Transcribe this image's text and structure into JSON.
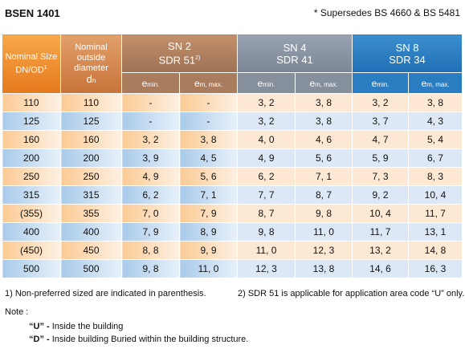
{
  "header": {
    "standard": "BSEN 1401",
    "supersedes": "* Supersedes BS 4660 & BS 5481"
  },
  "table": {
    "col_nominal_size": "Nominal Size DN/OD",
    "col_nominal_size_sup": "1",
    "col_outside_line1": "Nominal",
    "col_outside_line2": "outside",
    "col_outside_line3": "diameter",
    "col_outside_sym": "d",
    "col_outside_sub": "n",
    "groups": [
      {
        "sn": "SN 2",
        "sdr": "SDR 51",
        "sdr_sup": "2)"
      },
      {
        "sn": "SN 4",
        "sdr": "SDR 41",
        "sdr_sup": ""
      },
      {
        "sn": "SN 8",
        "sdr": "SDR 34",
        "sdr_sup": ""
      }
    ],
    "sub_emin_sym": "e",
    "sub_emin_sub": "min.",
    "sub_emax_sym": "e",
    "sub_emax_sub": "m, max.",
    "rows": [
      {
        "size": "110",
        "od": "110",
        "sn2_min": "-",
        "sn2_max": "-",
        "sn4_min": "3, 2",
        "sn4_max": "3, 8",
        "sn8_min": "3, 2",
        "sn8_max": "3, 8"
      },
      {
        "size": "125",
        "od": "125",
        "sn2_min": "-",
        "sn2_max": "-",
        "sn4_min": "3, 2",
        "sn4_max": "3, 8",
        "sn8_min": "3, 7",
        "sn8_max": "4, 3"
      },
      {
        "size": "160",
        "od": "160",
        "sn2_min": "3, 2",
        "sn2_max": "3, 8",
        "sn4_min": "4, 0",
        "sn4_max": "4, 6",
        "sn8_min": "4, 7",
        "sn8_max": "5, 4"
      },
      {
        "size": "200",
        "od": "200",
        "sn2_min": "3, 9",
        "sn2_max": "4, 5",
        "sn4_min": "4, 9",
        "sn4_max": "5, 6",
        "sn8_min": "5, 9",
        "sn8_max": "6, 7"
      },
      {
        "size": "250",
        "od": "250",
        "sn2_min": "4, 9",
        "sn2_max": "5, 6",
        "sn4_min": "6, 2",
        "sn4_max": "7, 1",
        "sn8_min": "7, 3",
        "sn8_max": "8, 3"
      },
      {
        "size": "315",
        "od": "315",
        "sn2_min": "6, 2",
        "sn2_max": "7, 1",
        "sn4_min": "7, 7",
        "sn4_max": "8, 7",
        "sn8_min": "9, 2",
        "sn8_max": "10, 4"
      },
      {
        "size": "(355)",
        "od": "355",
        "sn2_min": "7, 0",
        "sn2_max": "7, 9",
        "sn4_min": "8, 7",
        "sn4_max": "9, 8",
        "sn8_min": "10, 4",
        "sn8_max": "11, 7"
      },
      {
        "size": "400",
        "od": "400",
        "sn2_min": "7, 9",
        "sn2_max": "8, 9",
        "sn4_min": "9, 8",
        "sn4_max": "11, 0",
        "sn8_min": "11, 7",
        "sn8_max": "13, 1"
      },
      {
        "size": "(450)",
        "od": "450",
        "sn2_min": "8, 8",
        "sn2_max": "9, 9",
        "sn4_min": "11, 0",
        "sn4_max": "12, 3",
        "sn8_min": "13, 2",
        "sn8_max": "14, 8"
      },
      {
        "size": "500",
        "od": "500",
        "sn2_min": "9, 8",
        "sn2_max": "11, 0",
        "sn4_min": "12, 3",
        "sn4_max": "13, 8",
        "sn8_min": "14, 6",
        "sn8_max": "16, 3"
      }
    ]
  },
  "footnotes": {
    "fn1": "1) Non-preferred sized are indicated in parenthesis.",
    "fn2": "2) SDR 51 is applicable for application area code “U” only."
  },
  "notes": {
    "label": "Note :",
    "n1_code": "“U” - ",
    "n1_text": "Inside the building",
    "n2_code": "“D” - ",
    "n2_text": "Inside building Buried within the building structure."
  },
  "colors": {
    "orange_header": "#e5781d",
    "sn2_header": "#9c7255",
    "sn4_header": "#7b8694",
    "sn8_header": "#1f6fb4",
    "orange_row": "#fbcb95",
    "blue_row": "#a9cbea"
  }
}
